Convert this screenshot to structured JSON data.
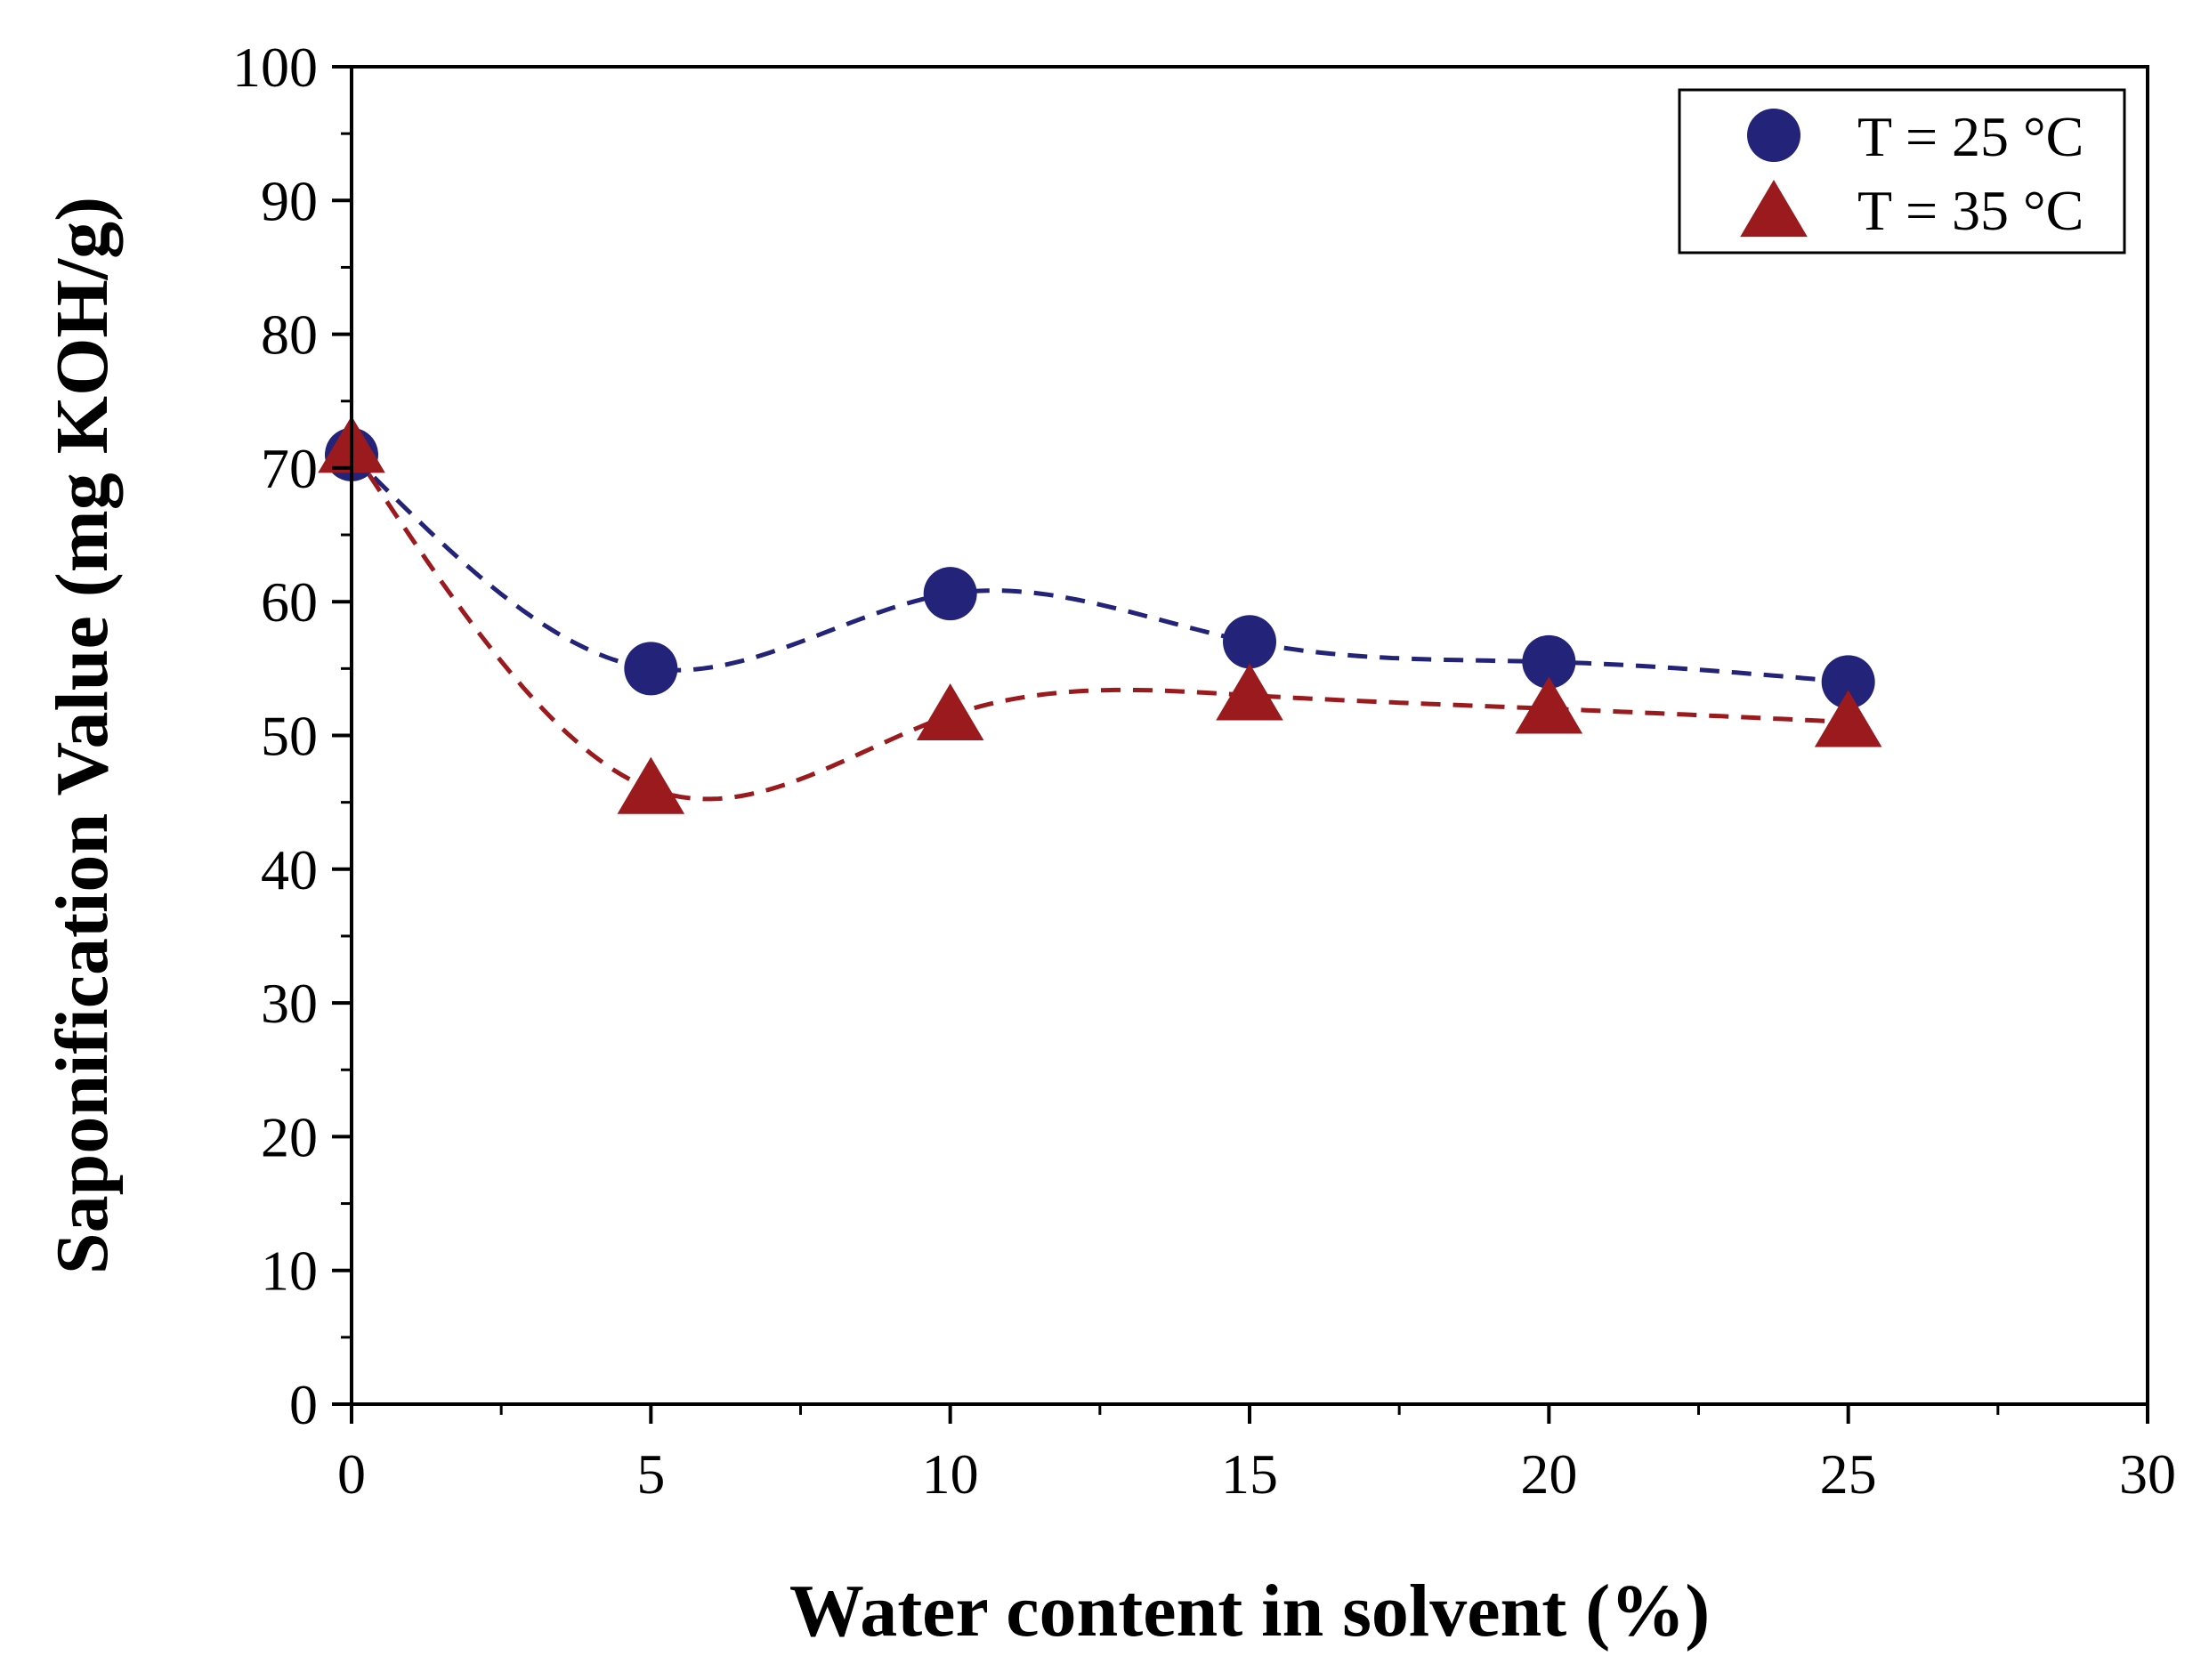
{
  "chart_data": {
    "type": "scatter",
    "title": "",
    "xlabel": "Water content in solvent (%)",
    "ylabel": "Saponification Value (mg KOH/g)",
    "xlim": [
      0,
      30
    ],
    "ylim": [
      0,
      100
    ],
    "x_ticks": [
      0,
      5,
      10,
      15,
      20,
      25,
      30
    ],
    "y_ticks": [
      0,
      10,
      20,
      30,
      40,
      50,
      60,
      70,
      80,
      90,
      100
    ],
    "x_tick_labels": [
      "0",
      "5",
      "10",
      "15",
      "20",
      "25",
      "30"
    ],
    "y_tick_labels": [
      "0",
      "10",
      "20",
      "30",
      "40",
      "50",
      "60",
      "70",
      "80",
      "90",
      "100"
    ],
    "legend_position": "top-right",
    "series": [
      {
        "name": "T = 25 °C",
        "marker": "circle",
        "color": "#23237a",
        "x": [
          0,
          5,
          10,
          15,
          20,
          25
        ],
        "values": [
          71,
          55,
          60.6,
          57,
          55.5,
          54
        ],
        "fit_line": "dashed"
      },
      {
        "name": "T = 35 °C",
        "marker": "triangle",
        "color": "#9b1a1e",
        "x": [
          0,
          5,
          10,
          15,
          20,
          25
        ],
        "values": [
          71.5,
          46,
          51.5,
          53,
          52,
          51
        ],
        "fit_line": "dashed"
      }
    ]
  }
}
